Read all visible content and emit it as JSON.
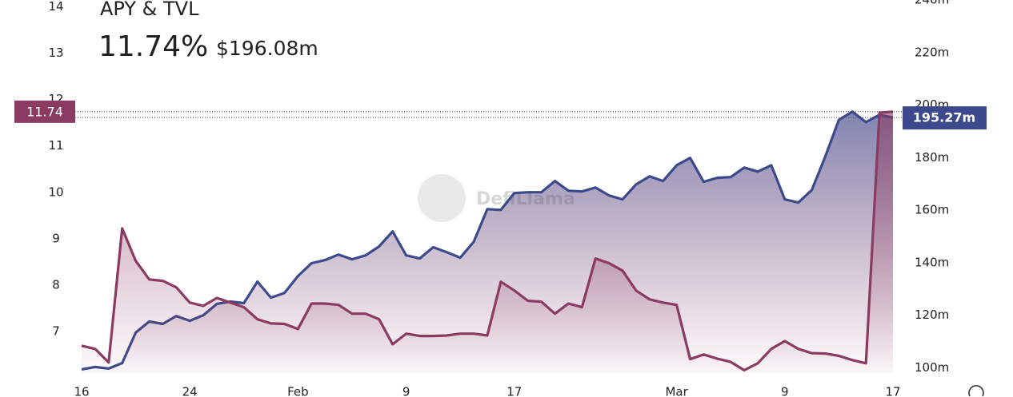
{
  "chart_data": {
    "type": "line",
    "title": "APY & TVL",
    "headline_apy": "11.74%",
    "headline_tvl": "$196.08m",
    "watermark": "DefiLlama",
    "categories": [
      "16",
      null,
      null,
      null,
      null,
      null,
      null,
      null,
      "24",
      null,
      null,
      null,
      null,
      null,
      null,
      null,
      "Feb",
      null,
      null,
      null,
      null,
      null,
      null,
      null,
      "9",
      null,
      null,
      null,
      null,
      null,
      null,
      null,
      "17",
      null,
      null,
      null,
      null,
      null,
      null,
      null,
      null,
      null,
      null,
      null,
      "Mar",
      null,
      null,
      null,
      null,
      null,
      null,
      null,
      "9",
      null,
      null,
      null,
      null,
      null,
      null,
      null,
      "17"
    ],
    "series": [
      {
        "color": "#8b3a62",
        "axis": "y",
        "values": [
          6.69,
          6.62,
          6.33,
          9.22,
          8.52,
          8.12,
          8.09,
          7.95,
          7.62,
          7.55,
          7.72,
          7.62,
          7.52,
          7.26,
          7.17,
          7.16,
          7.05,
          7.6,
          7.6,
          7.57,
          7.38,
          7.38,
          7.26,
          6.72,
          6.95,
          6.9,
          6.9,
          6.91,
          6.95,
          6.95,
          6.91,
          8.07,
          7.88,
          7.66,
          7.64,
          7.38,
          7.6,
          7.52,
          8.57,
          8.47,
          8.31,
          7.88,
          7.69,
          7.62,
          7.57,
          6.4,
          6.5,
          6.41,
          6.34,
          6.16,
          6.31,
          6.62,
          6.79,
          6.62,
          6.53,
          6.52,
          6.47,
          6.38,
          6.31,
          11.72,
          11.74
        ]
      },
      {
        "color": "#3c4a8c",
        "axis": "y2",
        "values": [
          99.4,
          100.3,
          99.7,
          101.8,
          113.4,
          117.6,
          116.7,
          119.7,
          117.9,
          120.0,
          124.3,
          125.2,
          124.6,
          132.8,
          126.7,
          128.5,
          134.9,
          139.8,
          141.0,
          143.1,
          141.3,
          142.8,
          146.2,
          151.9,
          142.8,
          141.6,
          145.9,
          144.0,
          141.9,
          148.0,
          160.4,
          160.1,
          166.5,
          166.8,
          166.8,
          171.1,
          167.4,
          167.1,
          168.6,
          165.6,
          164.1,
          169.8,
          172.9,
          171.1,
          177.1,
          179.9,
          170.8,
          172.3,
          172.6,
          176.2,
          174.7,
          177.1,
          164.1,
          162.9,
          167.7,
          180.5,
          194.4,
          197.5,
          193.5,
          196.3,
          195.27
        ]
      }
    ],
    "ylim": [
      6.1,
      14.15
    ],
    "yticks": [
      7,
      8,
      9,
      10,
      11,
      12,
      13,
      14
    ],
    "y2lim": [
      98,
      240
    ],
    "y2ticks": [
      {
        "value": 100,
        "label": "100m"
      },
      {
        "value": 120,
        "label": "120m"
      },
      {
        "value": 140,
        "label": "140m"
      },
      {
        "value": 160,
        "label": "160m"
      },
      {
        "value": 180,
        "label": "180m"
      },
      {
        "value": 200,
        "label": "200m"
      },
      {
        "value": 220,
        "label": "220m"
      },
      {
        "value": 240,
        "label": "240m"
      }
    ],
    "crosshair": {
      "apy": {
        "value": 11.74,
        "label": "11.74"
      },
      "tvl": {
        "value": 195.27,
        "label": "195.27m"
      }
    }
  }
}
